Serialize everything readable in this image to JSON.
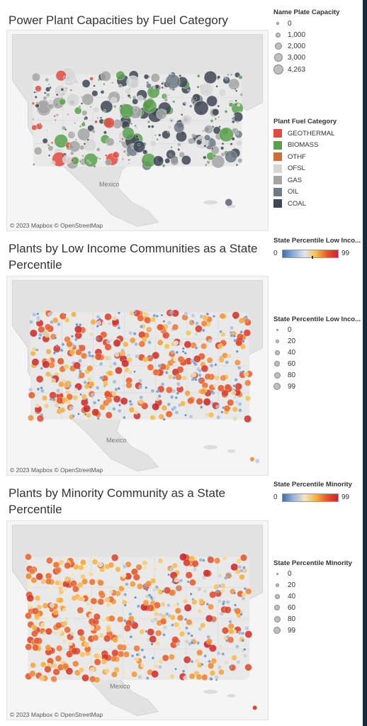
{
  "sections": [
    {
      "title": "Power Plant Capacities by Fuel Category",
      "attribution": "© 2023 Mapbox  © OpenStreetMap",
      "place_label": "Mexico",
      "size_legend": {
        "title": "Name Plate Capacity",
        "items": [
          "0",
          "1,000",
          "2,000",
          "3,000",
          "4,263"
        ]
      },
      "color_legend": {
        "title": "Plant Fuel Category",
        "items": [
          {
            "label": "GEOTHERMAL",
            "color": "#e04b3f"
          },
          {
            "label": "BIOMASS",
            "color": "#59a14f"
          },
          {
            "label": "OTHF",
            "color": "#d06d3a"
          },
          {
            "label": "OFSL",
            "color": "#d7d7d7"
          },
          {
            "label": "GAS",
            "color": "#a5a5a5"
          },
          {
            "label": "OIL",
            "color": "#6f7a85"
          },
          {
            "label": "COAL",
            "color": "#3e4754"
          }
        ]
      }
    },
    {
      "title": "Plants by Low Income Communities as a State Percentile",
      "attribution": "© 2023 Mapbox  © OpenStreetMap",
      "place_label": "Mexico",
      "ramp": {
        "title": "State Percentile Low Inco...",
        "min": "0",
        "max": "99"
      },
      "size_legend": {
        "title": "State Percentile Low Inco...",
        "items": [
          "0",
          "20",
          "40",
          "60",
          "80",
          "99"
        ]
      }
    },
    {
      "title": "Plants by Minority Community as a State Percentile",
      "attribution": "© 2023 Mapbox  © OpenStreetMap",
      "place_label": "Mexico",
      "ramp": {
        "title": "State Percentile Minority",
        "min": "0",
        "max": "99"
      },
      "size_legend": {
        "title": "State Percentile Minority",
        "items": [
          "0",
          "20",
          "40",
          "60",
          "80",
          "99"
        ]
      }
    }
  ]
}
